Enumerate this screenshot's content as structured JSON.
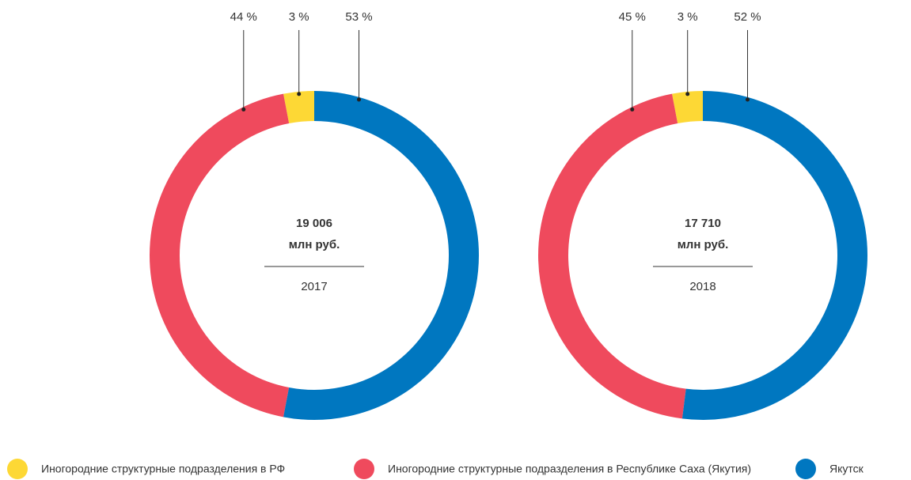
{
  "chart_data": [
    {
      "type": "pie",
      "categories": [
        "Иногородние структурные подразделения в РФ",
        "Иногородние структурные подразделения в Республике Саха (Якутия)",
        "Якутск"
      ],
      "values": [
        3,
        44,
        53
      ],
      "value_labels": [
        "3 %",
        "44 %",
        "53 %"
      ],
      "colors": [
        "#fdd835",
        "#ef4a5d",
        "#0077c0"
      ],
      "total_label": "19 006",
      "unit": "млн руб.",
      "subtitle": "2017"
    },
    {
      "type": "pie",
      "categories": [
        "Иногородние структурные подразделения в РФ",
        "Иногородние структурные подразделения в Республике Саха (Якутия)",
        "Якутск"
      ],
      "values": [
        3,
        45,
        52
      ],
      "value_labels": [
        "3 %",
        "45 %",
        "52 %"
      ],
      "colors": [
        "#fdd835",
        "#ef4a5d",
        "#0077c0"
      ],
      "total_label": "17 710",
      "unit": "млн руб.",
      "subtitle": "2018"
    }
  ]
}
